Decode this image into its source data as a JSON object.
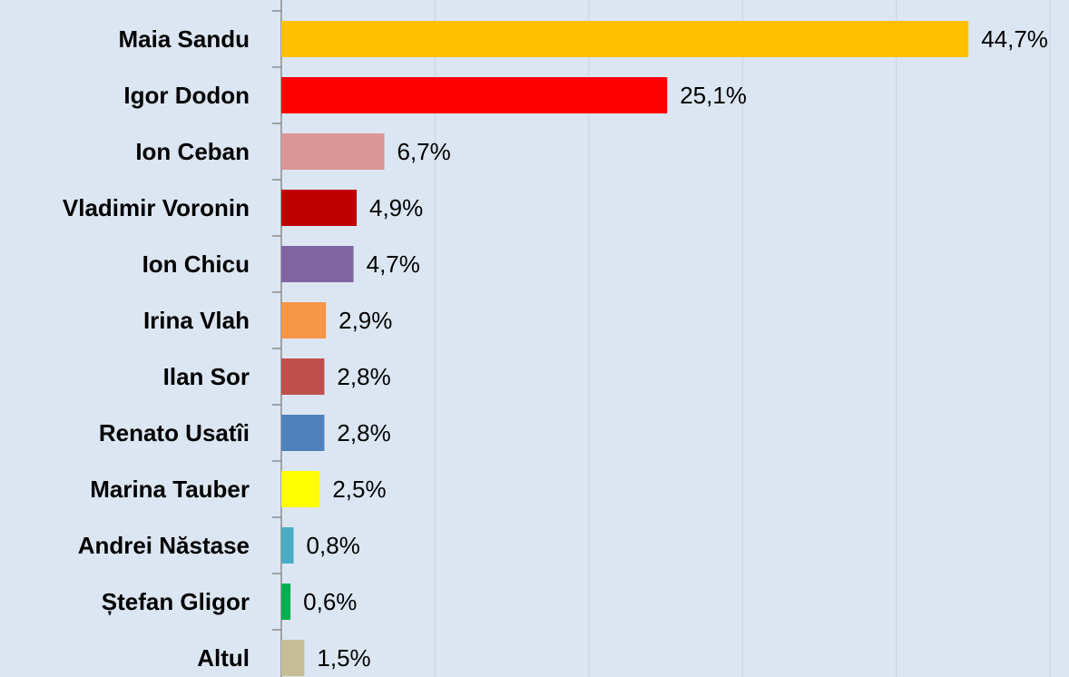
{
  "chart_data": {
    "type": "barh",
    "categories": [
      "Maia Sandu",
      "Igor Dodon",
      "Ion Ceban",
      "Vladimir Voronin",
      "Ion Chicu",
      "Irina Vlah",
      "Ilan Sor",
      "Renato Usatîi",
      "Marina Tauber",
      "Andrei Năstase",
      "Ștefan Gligor",
      "Altul"
    ],
    "values": [
      44.7,
      25.1,
      6.7,
      4.9,
      4.7,
      2.9,
      2.8,
      2.8,
      2.5,
      0.8,
      0.6,
      1.5
    ],
    "value_labels": [
      "44,7%",
      "25,1%",
      "6,7%",
      "4,9%",
      "4,7%",
      "2,9%",
      "2,8%",
      "2,8%",
      "2,5%",
      "0,8%",
      "0,6%",
      "1,5%"
    ],
    "colors": [
      "#FFC000",
      "#FF0000",
      "#DA9694",
      "#C00000",
      "#8064A2",
      "#F79646",
      "#C0504D",
      "#4F81BD",
      "#FFFF00",
      "#4BACC6",
      "#00B050",
      "#C4BD97"
    ],
    "xlim": [
      0,
      50
    ],
    "xticks": [
      0,
      10,
      20,
      30,
      40,
      50
    ],
    "grid": true
  }
}
